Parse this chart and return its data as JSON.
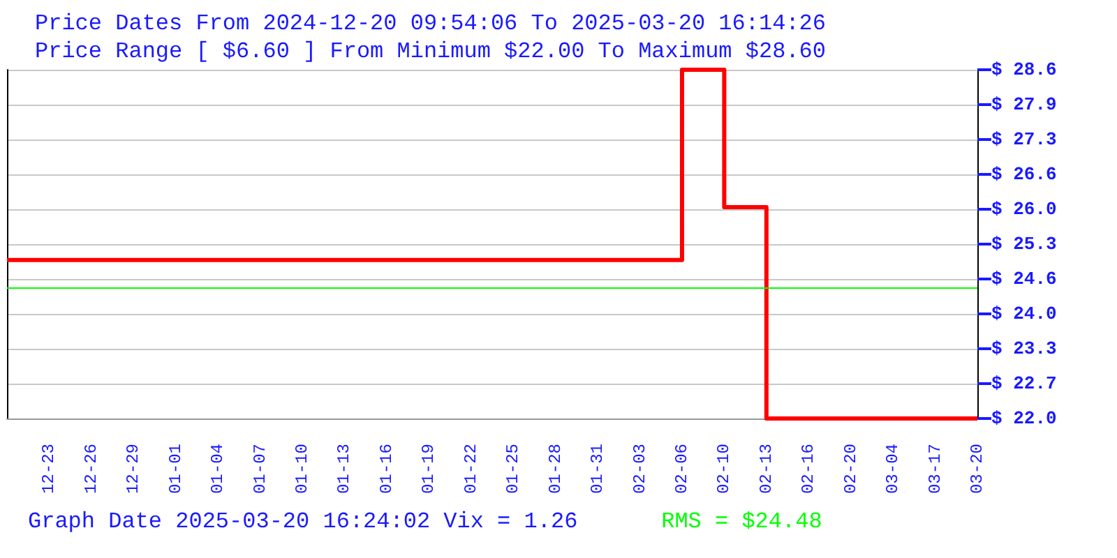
{
  "chart_data": {
    "type": "step",
    "title": "Price Dates From 2024-12-20 09:54:06 To 2025-03-20 16:14:26",
    "subtitle": "Price Range [ $6.60 ] From Minimum $22.00 To Maximum $28.60",
    "categories": [
      null,
      "12-23",
      "12-26",
      "12-29",
      "01-01",
      "01-04",
      "01-07",
      "01-10",
      "01-13",
      "01-16",
      "01-19",
      "01-22",
      "01-25",
      "01-28",
      "01-31",
      "02-03",
      "02-06",
      "02-10",
      "02-13",
      "02-16",
      "02-20",
      "03-04",
      "03-17",
      "03-20"
    ],
    "series": [
      {
        "color": "#ff0000",
        "values": [
          25.0,
          25.0,
          25.0,
          25.0,
          25.0,
          25.0,
          25.0,
          25.0,
          25.0,
          25.0,
          25.0,
          25.0,
          25.0,
          25.0,
          25.0,
          25.0,
          28.6,
          26.0,
          22.0,
          22.0,
          22.0,
          22.0,
          22.0,
          22.0
        ]
      }
    ],
    "ylim": [
      22.0,
      28.6
    ],
    "yticks": [
      {
        "value": 22.0,
        "label": "$ 22.0"
      },
      {
        "value": 22.66,
        "label": "$ 22.7"
      },
      {
        "value": 23.32,
        "label": "$ 23.3"
      },
      {
        "value": 23.98,
        "label": "$ 24.0"
      },
      {
        "value": 24.64,
        "label": "$ 24.6"
      },
      {
        "value": 25.3,
        "label": "$ 25.3"
      },
      {
        "value": 25.96,
        "label": "$ 26.0"
      },
      {
        "value": 26.62,
        "label": "$ 26.6"
      },
      {
        "value": 27.28,
        "label": "$ 27.3"
      },
      {
        "value": 27.94,
        "label": "$ 27.9"
      },
      {
        "value": 28.6,
        "label": "$ 28.6"
      }
    ],
    "ref_lines": [
      {
        "axis": "y",
        "value": 24.48,
        "label": "RMS = $24.48",
        "color": "#00ff00"
      }
    ],
    "annotations": [
      "Graph Date 2025-03-20 16:24:02 Vix = 1.26"
    ],
    "grid": "y",
    "marker": "none",
    "line_style": "solid"
  }
}
